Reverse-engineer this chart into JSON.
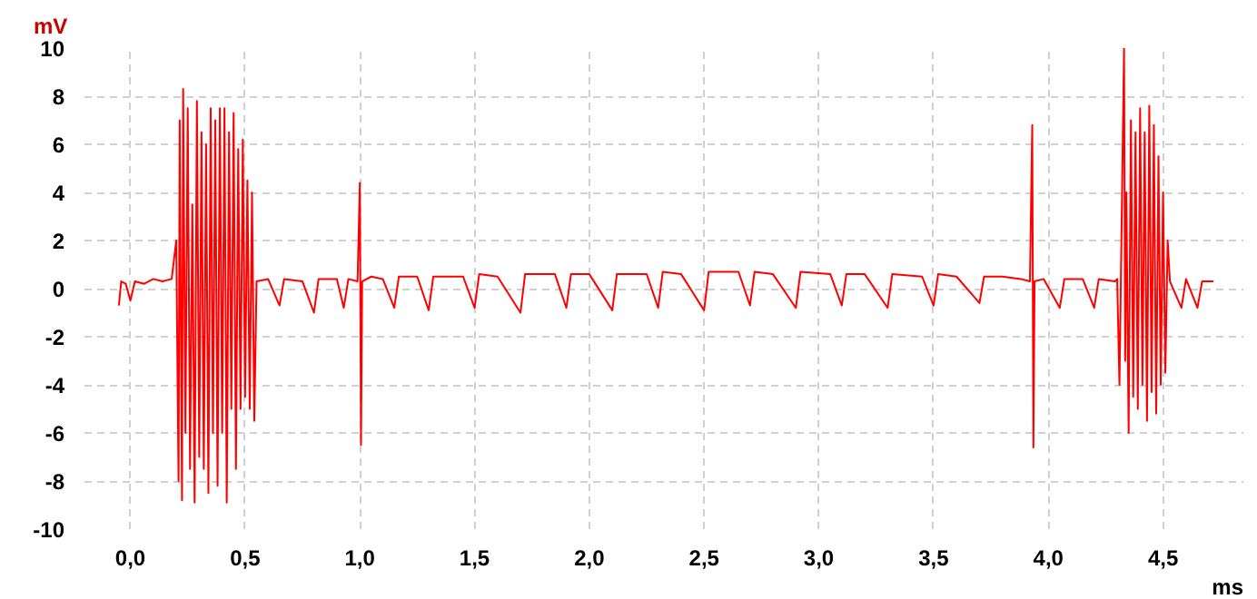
{
  "chart_data": {
    "type": "line",
    "xlabel": "ms",
    "ylabel": "mV",
    "xlim": [
      -0.2,
      4.85
    ],
    "ylim": [
      -10,
      10
    ],
    "xticks": [
      {
        "value": 0,
        "label": "0,0"
      },
      {
        "value": 0.5,
        "label": "0,5"
      },
      {
        "value": 1,
        "label": "1,0"
      },
      {
        "value": 1.5,
        "label": "1,5"
      },
      {
        "value": 2,
        "label": "2,0"
      },
      {
        "value": 2.5,
        "label": "2,5"
      },
      {
        "value": 3,
        "label": "3,0"
      },
      {
        "value": 3.5,
        "label": "3,5"
      },
      {
        "value": 4,
        "label": "4,0"
      },
      {
        "value": 4.5,
        "label": "4,5"
      }
    ],
    "yticks": [
      -10,
      -8,
      -6,
      -4,
      -2,
      0,
      2,
      4,
      6,
      8,
      10
    ],
    "grid": true,
    "marker": "none",
    "line_style": "solid",
    "series": [
      {
        "color": "#ff0000",
        "x": [
          -0.05,
          -0.04,
          -0.02,
          0.0,
          0.02,
          0.06,
          0.1,
          0.14,
          0.18,
          0.2,
          0.21,
          0.215,
          0.225,
          0.23,
          0.24,
          0.25,
          0.26,
          0.27,
          0.28,
          0.29,
          0.3,
          0.31,
          0.32,
          0.33,
          0.34,
          0.35,
          0.36,
          0.37,
          0.38,
          0.39,
          0.4,
          0.41,
          0.42,
          0.43,
          0.44,
          0.45,
          0.46,
          0.47,
          0.48,
          0.49,
          0.5,
          0.51,
          0.52,
          0.53,
          0.54,
          0.55,
          0.6,
          0.65,
          0.67,
          0.75,
          0.8,
          0.82,
          0.9,
          0.93,
          0.95,
          0.99,
          1.0,
          1.005,
          1.01,
          1.05,
          1.1,
          1.15,
          1.17,
          1.25,
          1.3,
          1.32,
          1.45,
          1.5,
          1.52,
          1.6,
          1.7,
          1.72,
          1.85,
          1.9,
          1.92,
          2.0,
          2.1,
          2.12,
          2.25,
          2.3,
          2.32,
          2.4,
          2.5,
          2.52,
          2.65,
          2.7,
          2.72,
          2.8,
          2.9,
          2.92,
          3.05,
          3.1,
          3.12,
          3.2,
          3.3,
          3.32,
          3.45,
          3.5,
          3.52,
          3.6,
          3.7,
          3.72,
          3.8,
          3.88,
          3.92,
          3.93,
          3.935,
          3.94,
          3.98,
          4.05,
          4.07,
          4.15,
          4.2,
          4.22,
          4.29,
          4.3,
          4.31,
          4.33,
          4.335,
          4.34,
          4.35,
          4.36,
          4.37,
          4.38,
          4.39,
          4.4,
          4.41,
          4.42,
          4.43,
          4.44,
          4.45,
          4.46,
          4.47,
          4.48,
          4.49,
          4.5,
          4.51,
          4.52,
          4.53,
          4.58,
          4.6,
          4.65,
          4.67,
          4.72
        ],
        "values": [
          -0.7,
          0.3,
          0.2,
          -0.5,
          0.3,
          0.2,
          0.4,
          0.3,
          0.4,
          2,
          -8,
          7,
          -8.8,
          8.3,
          -6,
          7.5,
          -7.5,
          3.5,
          -8.9,
          7.8,
          -7,
          6.5,
          -7.5,
          6,
          -8.5,
          7.5,
          -6,
          7,
          -8.2,
          7.5,
          -6,
          7.5,
          -8.9,
          6.5,
          -5,
          7.3,
          -7.5,
          5.8,
          -5,
          6.2,
          -4.5,
          4.5,
          -5,
          4,
          -5.5,
          0.3,
          0.4,
          -0.7,
          0.4,
          0.3,
          -1.0,
          0.4,
          0.4,
          -0.8,
          0.4,
          0.3,
          4.4,
          -6.5,
          0.3,
          0.5,
          0.4,
          -0.8,
          0.5,
          0.5,
          -0.9,
          0.5,
          0.5,
          -0.8,
          0.6,
          0.5,
          -1.0,
          0.6,
          0.6,
          -0.8,
          0.6,
          0.6,
          -0.9,
          0.6,
          0.6,
          -0.8,
          0.7,
          0.6,
          -0.9,
          0.7,
          0.7,
          -0.7,
          0.7,
          0.6,
          -0.8,
          0.7,
          0.6,
          -0.7,
          0.6,
          0.6,
          -0.8,
          0.6,
          0.5,
          -0.7,
          0.6,
          0.5,
          -0.6,
          0.5,
          0.5,
          0.4,
          0.3,
          6.8,
          -6.6,
          0.3,
          0.4,
          -0.8,
          0.4,
          0.4,
          -0.8,
          0.4,
          0.3,
          0.4,
          -4,
          10,
          -3,
          4,
          -6,
          7,
          -4.5,
          6.5,
          -5,
          7.5,
          -4,
          6.5,
          -5.5,
          7.6,
          -4.3,
          6.8,
          -5.2,
          5.5,
          -4,
          4,
          -3.5,
          2,
          0.3,
          -0.8,
          0.4,
          -0.8,
          0.3,
          0.3
        ]
      }
    ]
  }
}
